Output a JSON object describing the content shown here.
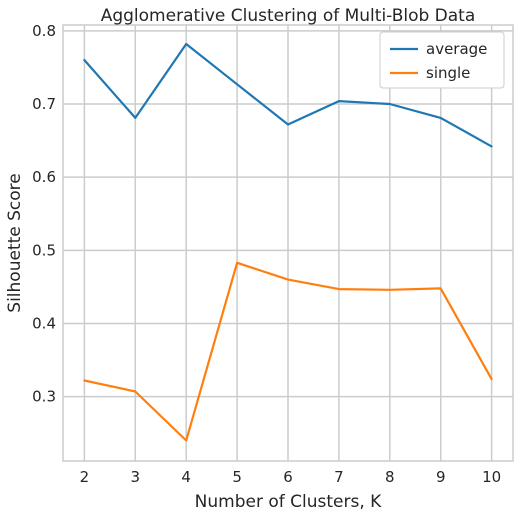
{
  "chart_data": {
    "type": "line",
    "title": "Agglomerative Clustering of Multi-Blob Data",
    "xlabel": "Number of Clusters, K",
    "ylabel": "Silhouette Score",
    "x": [
      2,
      3,
      4,
      5,
      6,
      7,
      8,
      9,
      10
    ],
    "xlim": [
      1.58,
      10.42
    ],
    "ylim": [
      0.212,
      0.808
    ],
    "xticks": [
      2,
      3,
      4,
      5,
      6,
      7,
      8,
      9,
      10
    ],
    "yticks": [
      0.3,
      0.4,
      0.5,
      0.6,
      0.7,
      0.8
    ],
    "ytick_labels": [
      "0.3",
      "0.4",
      "0.5",
      "0.6",
      "0.7",
      "0.8"
    ],
    "grid": true,
    "legend_position": "top-right",
    "series": [
      {
        "name": "average",
        "color": "#1f77b4",
        "values": [
          0.76,
          0.681,
          0.782,
          0.727,
          0.672,
          0.704,
          0.7,
          0.681,
          0.642
        ]
      },
      {
        "name": "single",
        "color": "#ff7f0e",
        "values": [
          0.322,
          0.307,
          0.24,
          0.483,
          0.46,
          0.447,
          0.446,
          0.448,
          0.324
        ]
      }
    ]
  }
}
